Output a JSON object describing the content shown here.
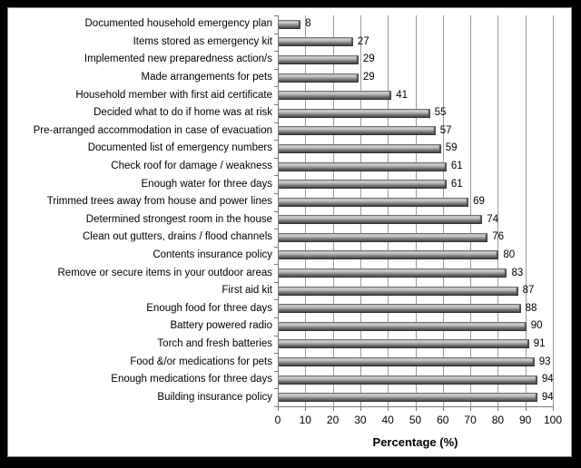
{
  "chart_data": {
    "type": "bar",
    "orientation": "horizontal",
    "title": "",
    "xlabel": "Percentage (%)",
    "xlim": [
      0,
      100
    ],
    "xticks": [
      0,
      10,
      20,
      30,
      40,
      50,
      60,
      70,
      80,
      90,
      100
    ],
    "grid": true,
    "legend": false,
    "data_labels": true,
    "categories": [
      "Documented household emergency plan",
      "Items stored as emergency kit",
      "Implemented new preparedness action/s",
      "Made arrangements for pets",
      "Household member with first aid certificate",
      "Decided what to do if home was at risk",
      "Pre-arranged accommodation in case of evacuation",
      "Documented list of emergency numbers",
      "Check roof for damage / weakness",
      "Enough water for three days",
      "Trimmed trees away from house and power lines",
      "Determined strongest room in the house",
      "Clean out gutters, drains / flood channels",
      "Contents insurance policy",
      "Remove or secure items in your outdoor areas",
      "First aid kit",
      "Enough food for three days",
      "Battery powered radio",
      "Torch and fresh batteries",
      "Food &/or medications for pets",
      "Enough medications for three days",
      "Building insurance policy"
    ],
    "values": [
      8,
      27,
      29,
      29,
      41,
      55,
      57,
      59,
      61,
      61,
      69,
      74,
      76,
      80,
      83,
      87,
      88,
      90,
      91,
      93,
      94,
      94
    ]
  },
  "colors": {
    "frame_background": "#000000",
    "chart_background": "#ffffff",
    "gridline": "#9a9a9a",
    "axis_line": "#7a7a7a",
    "bar_gray": "#808080",
    "text": "#000000"
  }
}
